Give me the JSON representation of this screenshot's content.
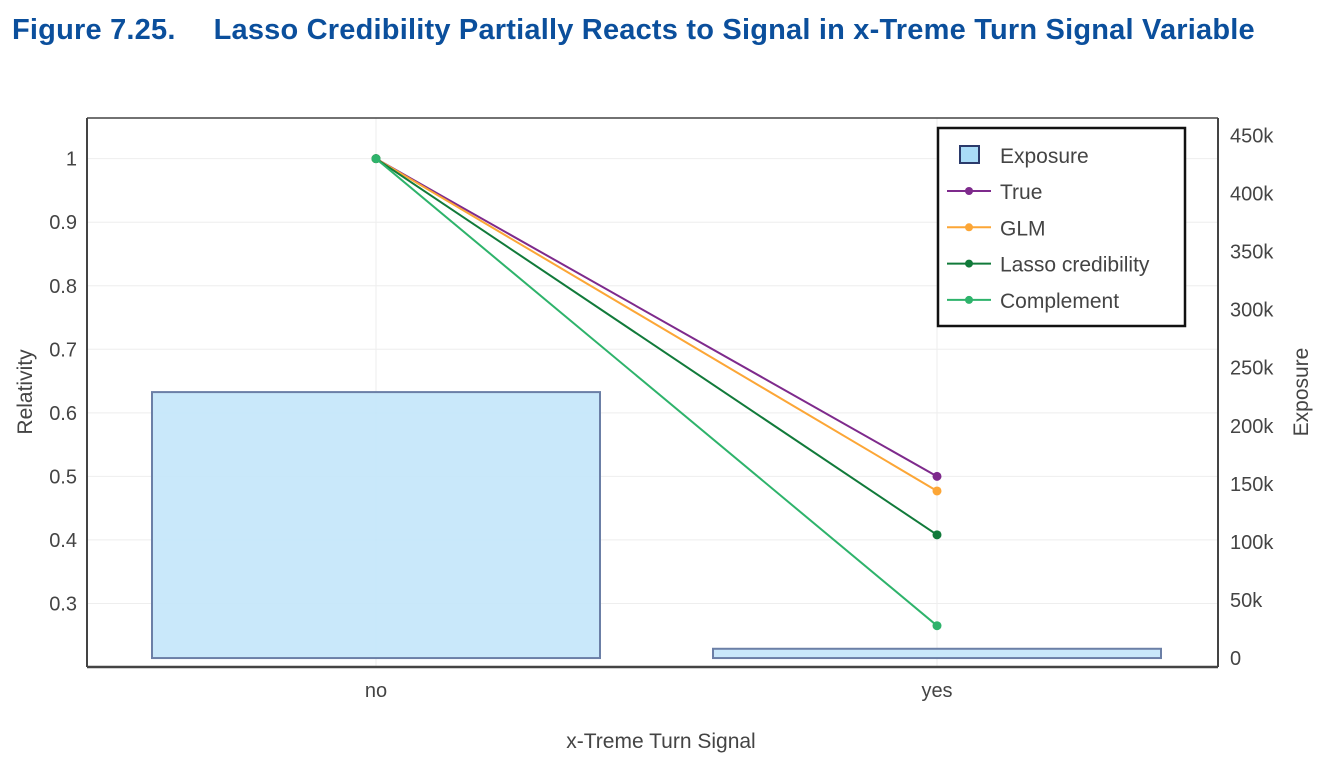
{
  "figure": {
    "number": "Figure 7.25.",
    "title": "Lasso Credibility Partially Reacts to Signal in x-Treme Turn Signal Variable"
  },
  "chart_data": {
    "type": "bar+line",
    "title": "Lasso Credibility Partially Reacts to Signal in x-Treme Turn Signal Variable",
    "xlabel": "x-Treme Turn Signal",
    "ylabel": "Relativity",
    "y2label": "Exposure",
    "categories": [
      "no",
      "yes"
    ],
    "ylim": [
      0.2,
      1.064
    ],
    "yticks": [
      0.3,
      0.4,
      0.5,
      0.6,
      0.7,
      0.8,
      0.9,
      1
    ],
    "ytick_labels": [
      "0.3",
      "0.4",
      "0.5",
      "0.6",
      "0.7",
      "0.8",
      "0.9",
      "1"
    ],
    "y2lim": [
      -7700,
      465000
    ],
    "y2ticks": [
      0,
      50000,
      100000,
      150000,
      200000,
      250000,
      300000,
      350000,
      400000,
      450000
    ],
    "y2tick_labels": [
      "0",
      "50k",
      "100k",
      "150k",
      "200k",
      "250k",
      "300k",
      "350k",
      "400k",
      "450k"
    ],
    "grid": true,
    "legend_position": "top-right",
    "bars": {
      "name": "Exposure",
      "values": [
        229000,
        8000
      ],
      "fill": "#c3e6f9",
      "stroke": "#6b7fa6"
    },
    "series": [
      {
        "name": "True",
        "values": [
          1,
          0.5
        ],
        "color": "#7e2a8c"
      },
      {
        "name": "GLM",
        "values": [
          1,
          0.477
        ],
        "color": "#fca636"
      },
      {
        "name": "Lasso credibility",
        "values": [
          1,
          0.408
        ],
        "color": "#117a3a"
      },
      {
        "name": "Complement",
        "values": [
          1,
          0.265
        ],
        "color": "#2eb36b"
      }
    ]
  }
}
